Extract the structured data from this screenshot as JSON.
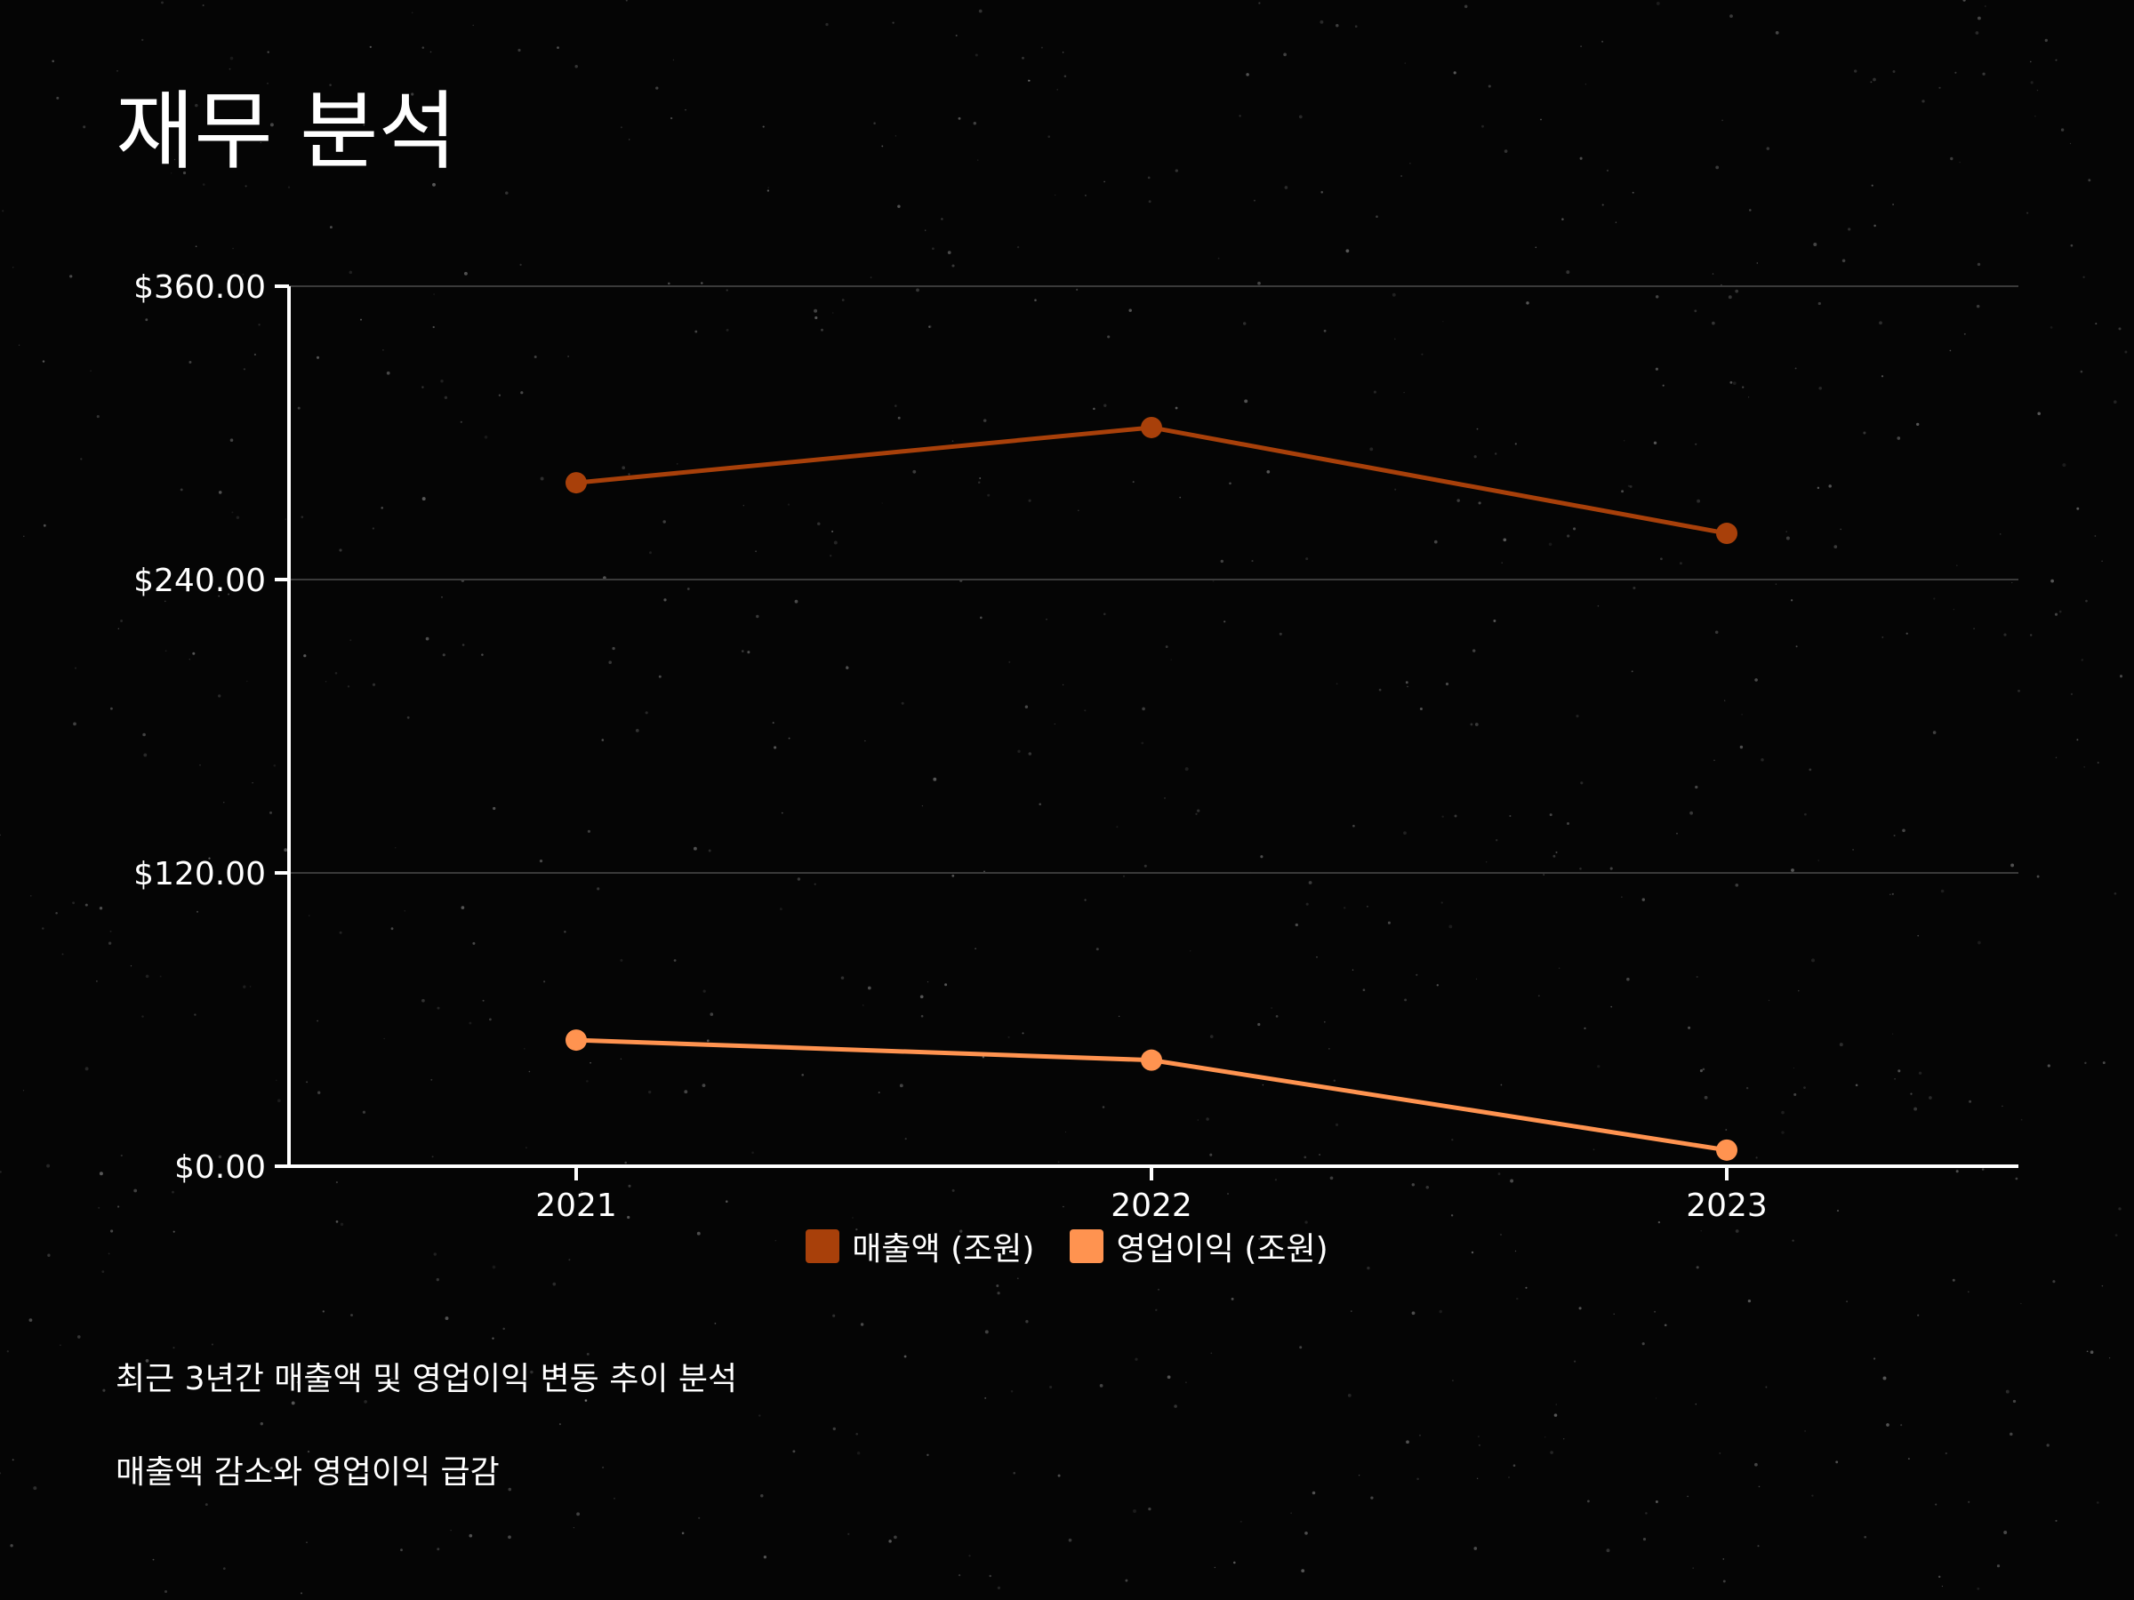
{
  "page": {
    "title": "재무 분석",
    "notes": [
      "최근 3년간 매출액 및 영업이익 변동 추이 분석",
      "매출액 감소와 영업이익 급감"
    ]
  },
  "colors": {
    "background": "#050505",
    "grid": "#3a3a3a",
    "axis": "#ffffff",
    "series_revenue": "#a8400a",
    "series_operating_profit": "#ff9350"
  },
  "chart_data": {
    "type": "line",
    "title": "",
    "xlabel": "",
    "ylabel": "",
    "categories": [
      "2021",
      "2022",
      "2023"
    ],
    "ylim": [
      0,
      360
    ],
    "yticks": [
      0,
      120,
      240,
      360
    ],
    "ytick_labels": [
      "$0.00",
      "$120.00",
      "$240.00",
      "$360.00"
    ],
    "grid": true,
    "legend_position": "bottom-center",
    "series": [
      {
        "name": "매출액 (조원)",
        "values": [
          279.6,
          302.2,
          258.9
        ],
        "color": "#a8400a"
      },
      {
        "name": "영업이익 (조원)",
        "values": [
          51.6,
          43.4,
          6.6
        ],
        "color": "#ff9350"
      }
    ]
  }
}
